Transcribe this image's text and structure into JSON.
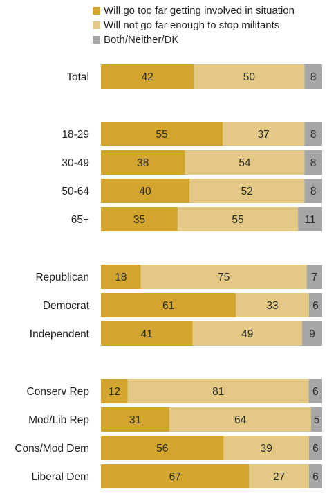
{
  "chart_data": {
    "type": "bar",
    "orientation": "horizontal",
    "stacked": true,
    "percent_scale": true,
    "legend_position": "top",
    "categories": [
      "Total",
      "18-29",
      "30-49",
      "50-64",
      "65+",
      "Republican",
      "Democrat",
      "Independent",
      "Conserv Rep",
      "Mod/Lib Rep",
      "Cons/Mod Dem",
      "Liberal Dem"
    ],
    "groups": [
      [
        "Total"
      ],
      [
        "18-29",
        "30-49",
        "50-64",
        "65+"
      ],
      [
        "Republican",
        "Democrat",
        "Independent"
      ],
      [
        "Conserv Rep",
        "Mod/Lib Rep",
        "Cons/Mod Dem",
        "Liberal Dem"
      ]
    ],
    "series": [
      {
        "name": "Will go too far getting involved in situation",
        "color": "#d1a52e",
        "values": [
          42,
          55,
          38,
          40,
          35,
          18,
          61,
          41,
          12,
          31,
          56,
          67
        ]
      },
      {
        "name": "Will not go far enough to stop militants",
        "color": "#e3c985",
        "values": [
          50,
          37,
          54,
          52,
          55,
          75,
          33,
          49,
          81,
          64,
          39,
          27
        ]
      },
      {
        "name": "Both/Neither/DK",
        "color": "#a6a6a6",
        "values": [
          8,
          8,
          8,
          8,
          11,
          7,
          6,
          9,
          6,
          5,
          6,
          6
        ]
      }
    ]
  }
}
